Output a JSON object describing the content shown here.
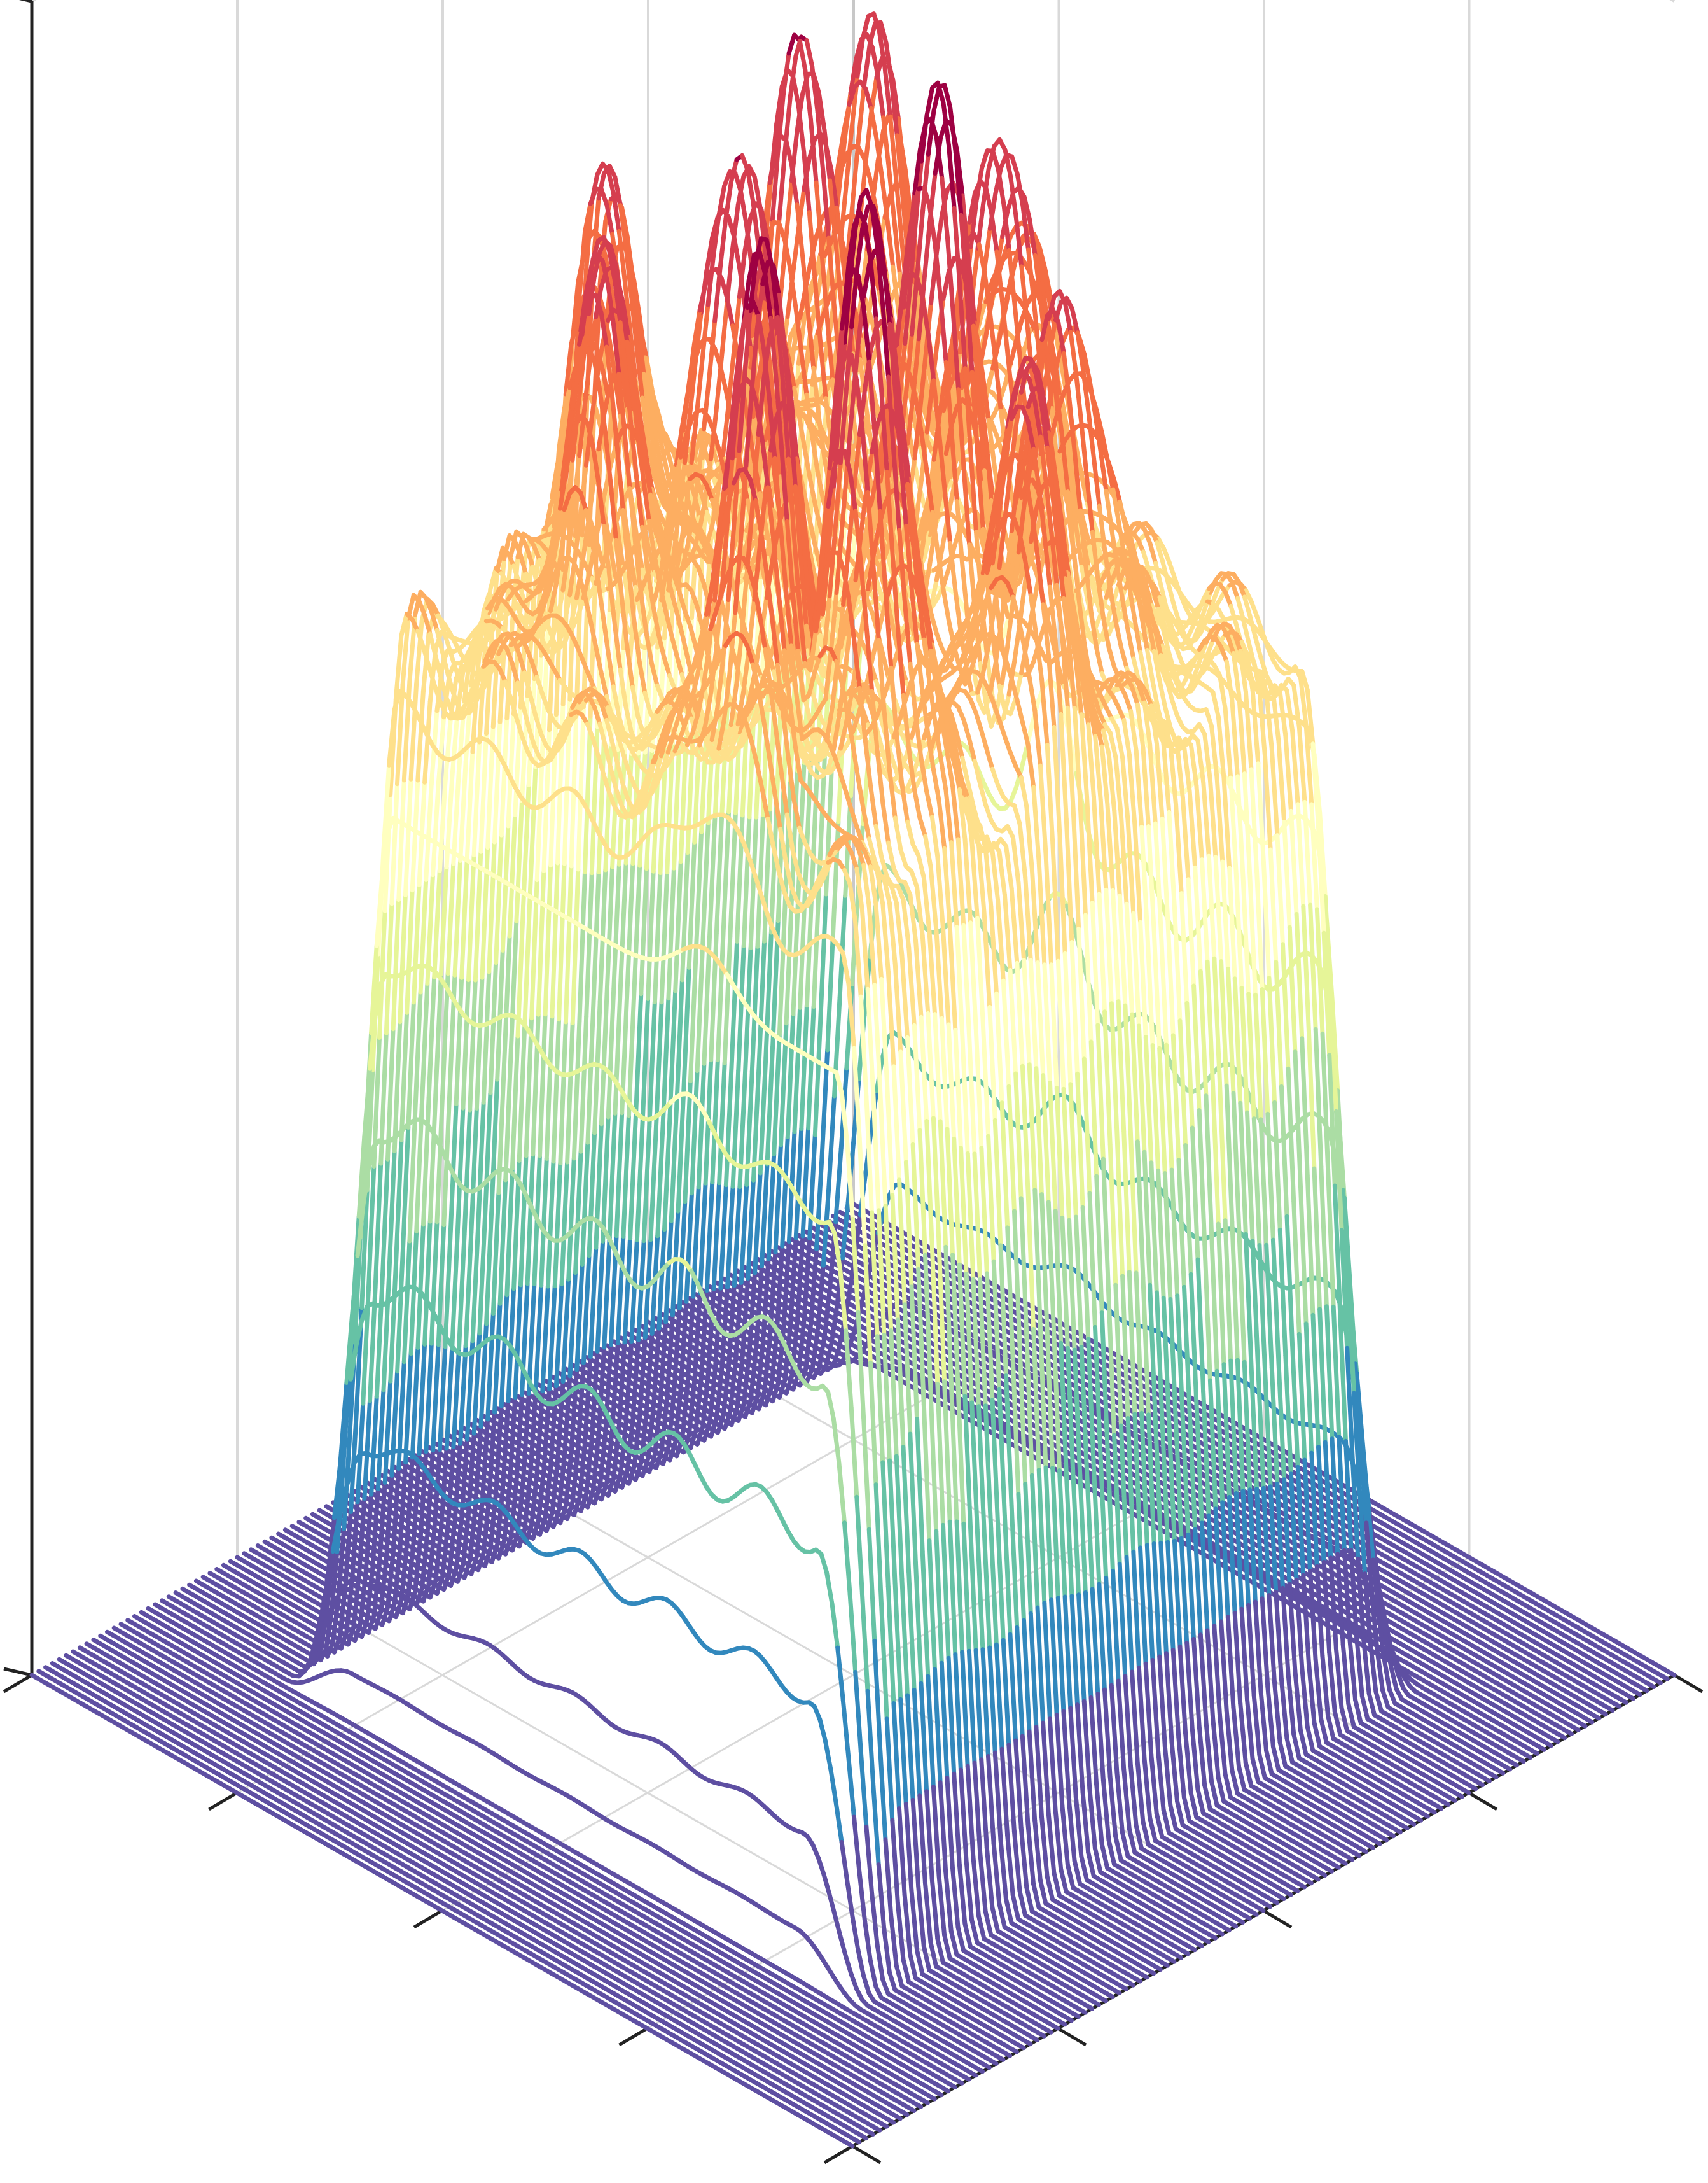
{
  "chart_data": {
    "type": "surface3d",
    "title": "",
    "xlabel": "",
    "ylabel": "",
    "zlabel": "",
    "tick_labels_shown": false,
    "grid": true,
    "colormap": "Spectral_r",
    "colors": [
      "#5e4fa2",
      "#3288bd",
      "#66c2a5",
      "#abdda4",
      "#e6f598",
      "#ffffbf",
      "#fee08b",
      "#fdae61",
      "#f46d43",
      "#d53e4f",
      "#9e0142"
    ],
    "background_color": "#ffffff",
    "pane_grid_color": "#d9d9d9",
    "axis_color": "#222222",
    "base_level": 0,
    "plateau": {
      "x_range": [
        0.18,
        0.8
      ],
      "y_range": [
        0.18,
        0.8
      ],
      "height": 0.62
    },
    "peaks": [
      {
        "x": 0.3,
        "y": 0.32,
        "z": 1.0
      },
      {
        "x": 0.38,
        "y": 0.27,
        "z": 0.94
      },
      {
        "x": 0.42,
        "y": 0.52,
        "z": 0.97
      },
      {
        "x": 0.56,
        "y": 0.42,
        "z": 0.92
      },
      {
        "x": 0.64,
        "y": 0.58,
        "z": 0.9
      },
      {
        "x": 0.7,
        "y": 0.72,
        "z": 0.86
      },
      {
        "x": 0.48,
        "y": 0.66,
        "z": 0.88
      },
      {
        "x": 0.34,
        "y": 0.6,
        "z": 0.84
      },
      {
        "x": 0.62,
        "y": 0.32,
        "z": 0.88
      },
      {
        "x": 0.74,
        "y": 0.44,
        "z": 0.84
      },
      {
        "x": 0.27,
        "y": 0.48,
        "z": 0.86
      },
      {
        "x": 0.55,
        "y": 0.76,
        "z": 0.8
      }
    ]
  }
}
